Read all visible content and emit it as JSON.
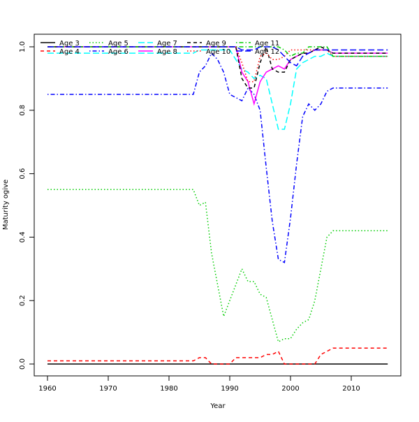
{
  "chart_data": {
    "type": "line",
    "title": "",
    "xlabel": "Year",
    "ylabel": "Maturity ogive",
    "xlim": [
      1958,
      2018
    ],
    "ylim": [
      -0.04,
      1.04
    ],
    "xticks": [
      1960,
      1970,
      1980,
      1990,
      2000,
      2010
    ],
    "yticks": [
      "0.0",
      "0.2",
      "0.4",
      "0.6",
      "0.8",
      "1.0"
    ],
    "legend_placement": "top-left",
    "year_start": 1960,
    "year_end": 2016,
    "series": [
      {
        "name": "Age 3",
        "color": "#000000",
        "dash": "solid",
        "values": [
          0,
          0,
          0,
          0,
          0,
          0,
          0,
          0,
          0,
          0,
          0,
          0,
          0,
          0,
          0,
          0,
          0,
          0,
          0,
          0,
          0,
          0,
          0,
          0,
          0,
          0,
          0,
          0,
          0,
          0,
          0,
          0,
          0,
          0,
          0,
          0,
          0,
          0,
          0,
          0,
          0,
          0,
          0,
          0,
          0,
          0,
          0,
          0,
          0,
          0,
          0,
          0,
          0,
          0,
          0,
          0,
          0
        ]
      },
      {
        "name": "Age 4",
        "color": "#ff0000",
        "dash": "dashed",
        "values": [
          0.01,
          0.01,
          0.01,
          0.01,
          0.01,
          0.01,
          0.01,
          0.01,
          0.01,
          0.01,
          0.01,
          0.01,
          0.01,
          0.01,
          0.01,
          0.01,
          0.01,
          0.01,
          0.01,
          0.01,
          0.01,
          0.01,
          0.01,
          0.01,
          0.01,
          0.02,
          0.02,
          0,
          0,
          0,
          0,
          0.02,
          0.02,
          0.02,
          0.02,
          0.02,
          0.03,
          0.03,
          0.04,
          0,
          0,
          0,
          0,
          0,
          0,
          0.03,
          0.04,
          0.05,
          0.05,
          0.05,
          0.05,
          0.05,
          0.05,
          0.05,
          0.05,
          0.05,
          0.05
        ]
      },
      {
        "name": "Age 5",
        "color": "#00cd00",
        "dash": "dotted",
        "values": [
          0.55,
          0.55,
          0.55,
          0.55,
          0.55,
          0.55,
          0.55,
          0.55,
          0.55,
          0.55,
          0.55,
          0.55,
          0.55,
          0.55,
          0.55,
          0.55,
          0.55,
          0.55,
          0.55,
          0.55,
          0.55,
          0.55,
          0.55,
          0.55,
          0.55,
          0.5,
          0.51,
          0.35,
          0.25,
          0.15,
          0.2,
          0.25,
          0.3,
          0.26,
          0.26,
          0.22,
          0.21,
          0.14,
          0.07,
          0.08,
          0.08,
          0.11,
          0.13,
          0.14,
          0.2,
          0.3,
          0.4,
          0.42,
          0.42,
          0.42,
          0.42,
          0.42,
          0.42,
          0.42,
          0.42,
          0.42,
          0.42
        ]
      },
      {
        "name": "Age 6",
        "color": "#0000ff",
        "dash": "dotdash",
        "values": [
          0.85,
          0.85,
          0.85,
          0.85,
          0.85,
          0.85,
          0.85,
          0.85,
          0.85,
          0.85,
          0.85,
          0.85,
          0.85,
          0.85,
          0.85,
          0.85,
          0.85,
          0.85,
          0.85,
          0.85,
          0.85,
          0.85,
          0.85,
          0.85,
          0.85,
          0.92,
          0.94,
          0.98,
          0.96,
          0.92,
          0.85,
          0.84,
          0.83,
          0.87,
          0.85,
          0.8,
          0.62,
          0.45,
          0.33,
          0.32,
          0.46,
          0.63,
          0.78,
          0.82,
          0.8,
          0.82,
          0.86,
          0.87,
          0.87,
          0.87,
          0.87,
          0.87,
          0.87,
          0.87,
          0.87,
          0.87,
          0.87
        ]
      },
      {
        "name": "Age 7",
        "color": "#00ffff",
        "dash": "longdash",
        "values": [
          0.98,
          0.98,
          0.98,
          0.98,
          0.98,
          0.98,
          0.98,
          0.98,
          0.98,
          0.98,
          0.98,
          0.98,
          0.98,
          0.98,
          0.98,
          0.98,
          0.98,
          0.98,
          0.98,
          0.98,
          0.98,
          0.98,
          0.98,
          0.98,
          0.98,
          0.99,
          0.99,
          0.99,
          0.99,
          0.99,
          0.99,
          0.96,
          0.93,
          0.92,
          0.9,
          0.91,
          0.9,
          0.82,
          0.74,
          0.74,
          0.82,
          0.93,
          0.95,
          0.96,
          0.97,
          0.97,
          0.98,
          0.97,
          0.97,
          0.97,
          0.97,
          0.97,
          0.97,
          0.97,
          0.97,
          0.97,
          0.97
        ]
      },
      {
        "name": "Age 8",
        "color": "#ff00ff",
        "dash": "solid",
        "values": [
          1,
          1,
          1,
          1,
          1,
          1,
          1,
          1,
          1,
          1,
          1,
          1,
          1,
          1,
          1,
          1,
          1,
          1,
          1,
          1,
          1,
          1,
          1,
          1,
          1,
          1,
          1,
          1,
          1,
          1,
          1,
          1,
          0.92,
          0.89,
          0.82,
          0.89,
          0.92,
          0.93,
          0.94,
          0.93,
          0.96,
          0.97,
          0.98,
          0.98,
          0.99,
          0.99,
          0.99,
          0.98,
          0.98,
          0.98,
          0.98,
          0.98,
          0.98,
          0.98,
          0.98,
          0.98,
          0.98
        ]
      },
      {
        "name": "Age 9",
        "color": "#000000",
        "dash": "dashed",
        "values": [
          1,
          1,
          1,
          1,
          1,
          1,
          1,
          1,
          1,
          1,
          1,
          1,
          1,
          1,
          1,
          1,
          1,
          1,
          1,
          1,
          1,
          1,
          1,
          1,
          1,
          1,
          1,
          1,
          1,
          1,
          1,
          1,
          0.9,
          0.87,
          0.87,
          0.95,
          1.0,
          0.93,
          0.92,
          0.92,
          0.96,
          0.97,
          0.98,
          0.98,
          0.99,
          1.0,
          0.99,
          0.98,
          0.98,
          0.98,
          0.98,
          0.98,
          0.98,
          0.98,
          0.98,
          0.98,
          0.98
        ]
      },
      {
        "name": "Age 10",
        "color": "#ff0000",
        "dash": "dotted",
        "values": [
          1,
          1,
          1,
          1,
          1,
          1,
          1,
          1,
          1,
          1,
          1,
          1,
          1,
          1,
          1,
          1,
          1,
          1,
          1,
          1,
          1,
          1,
          1,
          1,
          1,
          1,
          1,
          1,
          1,
          1,
          1,
          1,
          0.95,
          0.89,
          0.89,
          0.97,
          0.98,
          0.96,
          0.96,
          0.97,
          0.99,
          0.99,
          0.99,
          0.99,
          0.99,
          0.99,
          0.99,
          0.97,
          0.97,
          0.97,
          0.97,
          0.97,
          0.97,
          0.97,
          0.97,
          0.97,
          0.97
        ]
      },
      {
        "name": "Age 11",
        "color": "#00cd00",
        "dash": "dotdash",
        "values": [
          1,
          1,
          1,
          1,
          1,
          1,
          1,
          1,
          1,
          1,
          1,
          1,
          1,
          1,
          1,
          1,
          1,
          1,
          1,
          1,
          1,
          1,
          1,
          1,
          1,
          1,
          1,
          1,
          1,
          1,
          1,
          1,
          1,
          1,
          1,
          1,
          1,
          1,
          1,
          0.99,
          0.97,
          0.98,
          0.98,
          1.0,
          1.0,
          1.0,
          1.0,
          0.97,
          0.97,
          0.97,
          0.97,
          0.97,
          0.97,
          0.97,
          0.97,
          0.97,
          0.97
        ]
      },
      {
        "name": "Age 12",
        "color": "#0000ff",
        "dash": "longdash",
        "values": [
          1,
          1,
          1,
          1,
          1,
          1,
          1,
          1,
          1,
          1,
          1,
          1,
          1,
          1,
          1,
          1,
          1,
          1,
          1,
          1,
          1,
          1,
          1,
          1,
          1,
          1,
          1,
          1,
          1,
          1,
          1,
          1,
          0.99,
          0.99,
          0.99,
          1.0,
          1.0,
          1.0,
          0.99,
          0.97,
          0.95,
          0.94,
          0.97,
          0.98,
          0.99,
          0.99,
          0.99,
          0.99,
          0.99,
          0.99,
          0.99,
          0.99,
          0.99,
          0.99,
          0.99,
          0.99,
          0.99
        ]
      }
    ]
  }
}
